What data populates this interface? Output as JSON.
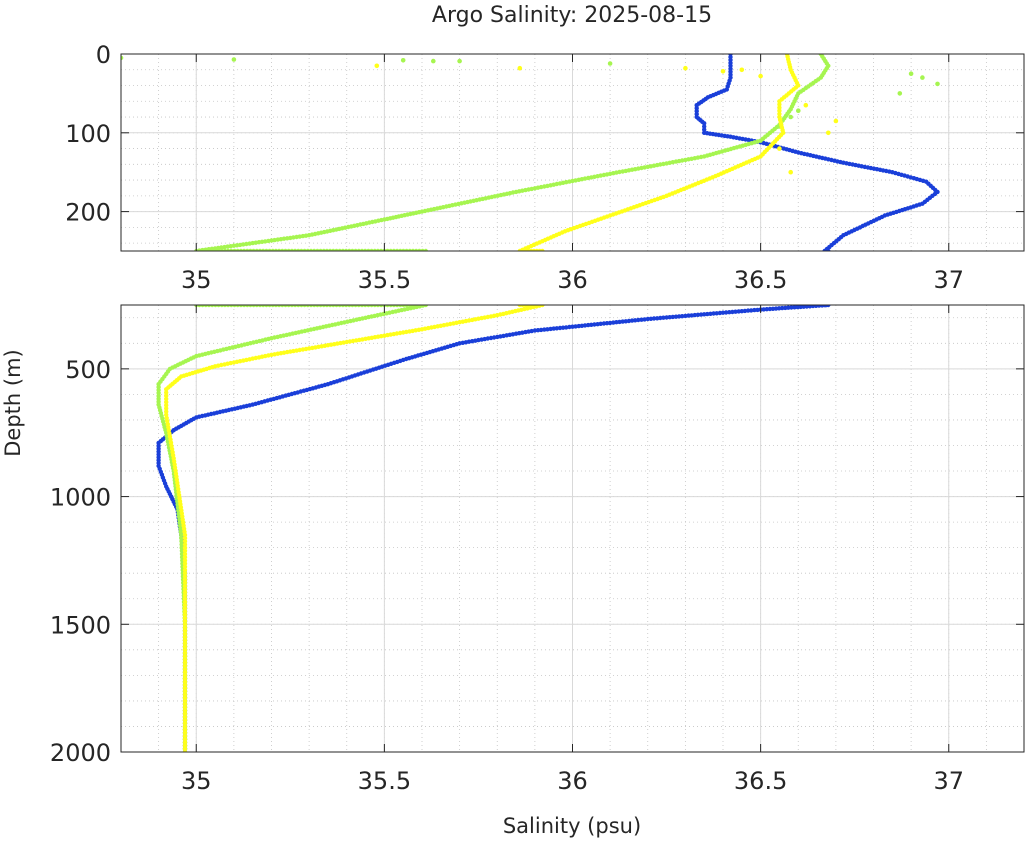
{
  "chart_data": {
    "type": "scatter",
    "title": "Argo Salinity: 2025-08-15",
    "xlabel": "Salinity (psu)",
    "ylabel": "Depth (m)",
    "grid": true,
    "colors": {
      "blue": "#1a3fd9",
      "green": "#a6f550",
      "yellow": "#ffff1a"
    },
    "panels": [
      {
        "name": "upper",
        "xlim": [
          34.8,
          37.2
        ],
        "ylim": [
          0,
          250
        ],
        "y_reversed": true,
        "xticks": [
          35,
          35.5,
          36,
          36.5,
          37
        ],
        "xtick_labels": [
          "35",
          "35.5",
          "36",
          "36.5",
          "37"
        ],
        "yticks": [
          0,
          100,
          200
        ],
        "ytick_labels": [
          "0",
          "100",
          "200"
        ]
      },
      {
        "name": "lower",
        "xlim": [
          34.8,
          37.2
        ],
        "ylim": [
          250,
          2000
        ],
        "y_reversed": true,
        "xticks": [
          35,
          35.5,
          36,
          36.5,
          37
        ],
        "xtick_labels": [
          "35",
          "35.5",
          "36",
          "36.5",
          "37"
        ],
        "yticks": [
          500,
          1000,
          1500,
          2000
        ],
        "ytick_labels": [
          "500",
          "1000",
          "1500",
          "2000"
        ]
      }
    ],
    "series": [
      {
        "color": "blue",
        "profile": [
          [
            36.42,
            0
          ],
          [
            36.42,
            30
          ],
          [
            36.41,
            45
          ],
          [
            36.36,
            55
          ],
          [
            36.33,
            65
          ],
          [
            36.33,
            80
          ],
          [
            36.35,
            88
          ],
          [
            36.35,
            100
          ],
          [
            36.42,
            105
          ],
          [
            36.5,
            112
          ],
          [
            36.6,
            125
          ],
          [
            36.72,
            138
          ],
          [
            36.85,
            150
          ],
          [
            36.94,
            162
          ],
          [
            36.97,
            175
          ],
          [
            36.93,
            190
          ],
          [
            36.83,
            205
          ],
          [
            36.72,
            230
          ],
          [
            36.67,
            250
          ],
          [
            36.68,
            250
          ],
          [
            36.5,
            268
          ],
          [
            36.2,
            305
          ],
          [
            35.9,
            350
          ],
          [
            35.7,
            400
          ],
          [
            35.55,
            465
          ],
          [
            35.35,
            560
          ],
          [
            35.15,
            640
          ],
          [
            35.0,
            690
          ],
          [
            34.94,
            740
          ],
          [
            34.9,
            790
          ],
          [
            34.9,
            880
          ],
          [
            34.92,
            960
          ],
          [
            34.95,
            1050
          ],
          [
            34.96,
            1150
          ],
          [
            34.97,
            1300
          ],
          [
            34.97,
            1600
          ],
          [
            34.97,
            2000
          ]
        ]
      },
      {
        "color": "green",
        "profile": [
          [
            36.66,
            0
          ],
          [
            36.68,
            15
          ],
          [
            36.66,
            30
          ],
          [
            36.6,
            50
          ],
          [
            36.58,
            70
          ],
          [
            36.55,
            90
          ],
          [
            36.5,
            110
          ],
          [
            36.35,
            130
          ],
          [
            36.1,
            152
          ],
          [
            35.85,
            175
          ],
          [
            35.6,
            200
          ],
          [
            35.5,
            210
          ],
          [
            35.3,
            230
          ],
          [
            35.0,
            250
          ],
          [
            35.61,
            250
          ],
          [
            35.45,
            300
          ],
          [
            35.2,
            380
          ],
          [
            35.0,
            450
          ],
          [
            34.93,
            500
          ],
          [
            34.9,
            560
          ],
          [
            34.9,
            640
          ],
          [
            34.92,
            750
          ],
          [
            34.94,
            900
          ],
          [
            34.96,
            1150
          ],
          [
            34.97,
            1500
          ],
          [
            34.97,
            2000
          ]
        ],
        "scatter": [
          [
            34.8,
            5
          ],
          [
            35.1,
            7
          ],
          [
            35.55,
            8
          ],
          [
            35.63,
            9
          ],
          [
            35.7,
            9
          ],
          [
            36.1,
            12
          ],
          [
            36.9,
            25
          ],
          [
            36.93,
            30
          ],
          [
            36.97,
            38
          ],
          [
            36.87,
            50
          ],
          [
            36.6,
            72
          ],
          [
            36.58,
            80
          ],
          [
            36.55,
            92
          ]
        ]
      },
      {
        "color": "yellow",
        "profile": [
          [
            36.57,
            0
          ],
          [
            36.58,
            20
          ],
          [
            36.6,
            40
          ],
          [
            36.55,
            60
          ],
          [
            36.55,
            80
          ],
          [
            36.56,
            100
          ],
          [
            36.5,
            130
          ],
          [
            36.38,
            155
          ],
          [
            36.25,
            180
          ],
          [
            36.1,
            205
          ],
          [
            35.98,
            225
          ],
          [
            35.86,
            250
          ],
          [
            35.92,
            250
          ],
          [
            35.8,
            290
          ],
          [
            35.6,
            345
          ],
          [
            35.4,
            395
          ],
          [
            35.2,
            445
          ],
          [
            35.05,
            490
          ],
          [
            34.96,
            530
          ],
          [
            34.92,
            580
          ],
          [
            34.92,
            680
          ],
          [
            34.94,
            850
          ],
          [
            34.97,
            1150
          ],
          [
            34.97,
            1500
          ],
          [
            34.97,
            2000
          ]
        ],
        "scatter": [
          [
            35.48,
            15
          ],
          [
            35.86,
            18
          ],
          [
            36.3,
            18
          ],
          [
            36.45,
            20
          ],
          [
            36.4,
            22
          ],
          [
            36.5,
            28
          ],
          [
            36.62,
            65
          ],
          [
            36.7,
            85
          ],
          [
            36.68,
            100
          ],
          [
            36.55,
            120
          ],
          [
            36.58,
            150
          ]
        ]
      }
    ]
  }
}
